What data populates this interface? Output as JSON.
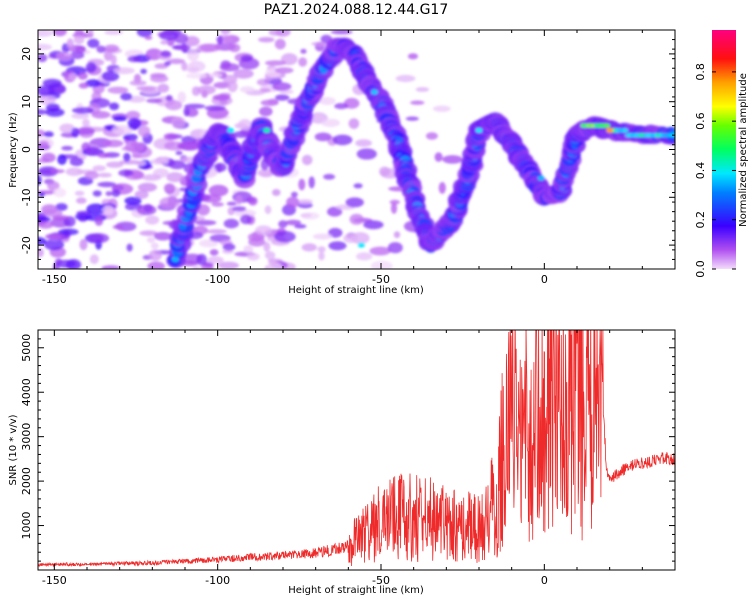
{
  "figure": {
    "title": "PAZ1.2024.088.12.44.G17"
  },
  "chart_data": [
    {
      "type": "heatmap",
      "xlabel": "Height of straight line (km)",
      "ylabel": "Frequency (Hz)",
      "xlim": [
        -155,
        40
      ],
      "ylim": [
        -25,
        25
      ],
      "xticks": [
        -150,
        -100,
        -50,
        0
      ],
      "yticks": [
        -20,
        -10,
        0,
        10,
        20
      ],
      "colorbar": {
        "label": "Normalized spectral amplitude",
        "ticks": [
          0.0,
          0.2,
          0.4,
          0.6,
          0.8
        ],
        "range": [
          0,
          0.97
        ]
      },
      "ridge": {
        "description_points_x": [
          -113,
          -105,
          -100,
          -96,
          -92,
          -87,
          -84,
          -80,
          -75,
          -70,
          -63,
          -58,
          -54,
          -50,
          -45,
          -40,
          -35,
          -28,
          -23,
          -20,
          -15,
          -10,
          -5,
          0,
          5,
          10,
          15,
          20,
          30,
          40
        ],
        "description_points_y": [
          -23,
          -3,
          4,
          0,
          -6,
          5,
          0,
          -4,
          6,
          14,
          22,
          20,
          14,
          10,
          2,
          -10,
          -20,
          -15,
          -5,
          4,
          6,
          1,
          -4,
          -10,
          -9,
          3,
          5,
          4,
          3,
          3
        ]
      }
    },
    {
      "type": "line",
      "xlabel": "Height of straight line (km)",
      "ylabel": "SNR (10 * v/v)",
      "xlim": [
        -155,
        40
      ],
      "ylim": [
        0,
        5400
      ],
      "xticks": [
        -150,
        -100,
        -50,
        0
      ],
      "yticks": [
        1000,
        2000,
        3000,
        4000,
        5000
      ],
      "color": "#ef2a2a",
      "series": [
        {
          "x": [
            -155,
            -140,
            -120,
            -100,
            -90,
            -80,
            -70,
            -60,
            -55,
            -50,
            -45,
            -40,
            -35,
            -30,
            -25,
            -20,
            -17,
            -14,
            -12,
            -10,
            -8,
            -5,
            -2,
            0,
            3,
            6,
            9,
            10,
            12,
            15,
            17,
            18,
            19,
            20,
            22,
            25,
            30,
            35,
            40
          ],
          "values": [
            120,
            130,
            160,
            230,
            290,
            330,
            380,
            520,
            800,
            1100,
            1200,
            1200,
            1150,
            1050,
            1000,
            900,
            1200,
            2000,
            3100,
            3800,
            2900,
            3200,
            3300,
            3400,
            3600,
            3700,
            3900,
            4600,
            3500,
            3700,
            3800,
            3700,
            2300,
            2000,
            2150,
            2300,
            2400,
            2500,
            2500
          ]
        }
      ]
    }
  ]
}
